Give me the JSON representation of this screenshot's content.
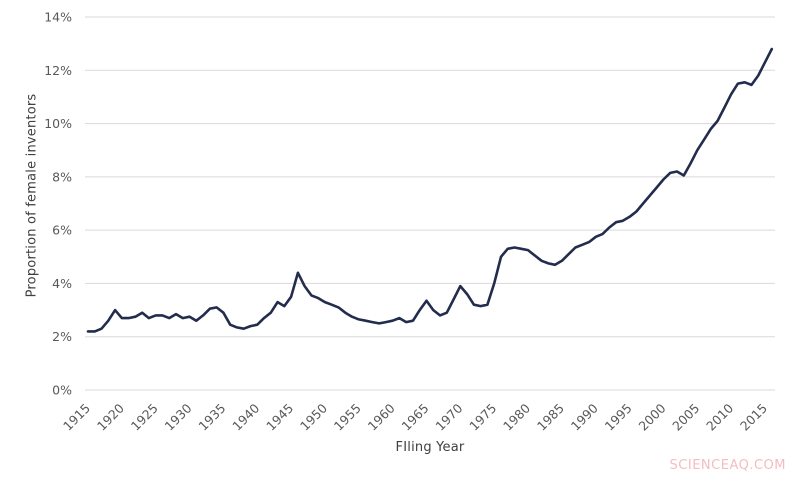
{
  "page": {
    "background": "#ffffff"
  },
  "watermark": {
    "text": "SCIENCEAQ.COM",
    "color": "#f4bcc1"
  },
  "chart_data": {
    "type": "line",
    "title": "",
    "xlabel": "FIling Year",
    "ylabel": "Proportion of female inventors",
    "ylim": [
      0,
      14
    ],
    "xlim": [
      1915,
      2016
    ],
    "y_ticks": [
      0,
      2,
      4,
      6,
      8,
      10,
      12,
      14
    ],
    "y_tick_suffix": "%",
    "x_ticks": [
      1915,
      1920,
      1925,
      1930,
      1935,
      1940,
      1945,
      1950,
      1955,
      1960,
      1965,
      1970,
      1975,
      1980,
      1985,
      1990,
      1995,
      2000,
      2005,
      2010,
      2015
    ],
    "grid": "horizontal",
    "legend": "none",
    "colors": {
      "line": "#232c4d",
      "gridline": "#d9d9d9",
      "tick_label": "#595959",
      "axis_title": "#404040"
    },
    "series": [
      {
        "name": "Proportion of female inventors",
        "x": [
          1915,
          1916,
          1917,
          1918,
          1919,
          1920,
          1921,
          1922,
          1923,
          1924,
          1925,
          1926,
          1927,
          1928,
          1929,
          1930,
          1931,
          1932,
          1933,
          1934,
          1935,
          1936,
          1937,
          1938,
          1939,
          1940,
          1941,
          1942,
          1943,
          1944,
          1945,
          1946,
          1947,
          1948,
          1949,
          1950,
          1951,
          1952,
          1953,
          1954,
          1955,
          1956,
          1957,
          1958,
          1959,
          1960,
          1961,
          1962,
          1963,
          1964,
          1965,
          1966,
          1967,
          1968,
          1969,
          1970,
          1971,
          1972,
          1973,
          1974,
          1975,
          1976,
          1977,
          1978,
          1979,
          1980,
          1981,
          1982,
          1983,
          1984,
          1985,
          1986,
          1987,
          1988,
          1989,
          1990,
          1991,
          1992,
          1993,
          1994,
          1995,
          1996,
          1997,
          1998,
          1999,
          2000,
          2001,
          2002,
          2003,
          2004,
          2005,
          2006,
          2007,
          2008,
          2009,
          2010,
          2011,
          2012,
          2013,
          2014,
          2015,
          2016
        ],
        "values": [
          2.2,
          2.2,
          2.3,
          2.6,
          3.0,
          2.7,
          2.7,
          2.75,
          2.9,
          2.7,
          2.8,
          2.8,
          2.7,
          2.85,
          2.7,
          2.75,
          2.6,
          2.8,
          3.05,
          3.1,
          2.9,
          2.45,
          2.35,
          2.3,
          2.4,
          2.45,
          2.7,
          2.9,
          3.3,
          3.15,
          3.5,
          4.4,
          3.9,
          3.55,
          3.45,
          3.3,
          3.2,
          3.1,
          2.9,
          2.75,
          2.65,
          2.6,
          2.55,
          2.5,
          2.55,
          2.6,
          2.7,
          2.55,
          2.6,
          3.0,
          3.35,
          3.0,
          2.8,
          2.9,
          3.4,
          3.9,
          3.6,
          3.2,
          3.15,
          3.2,
          4.0,
          5.0,
          5.3,
          5.35,
          5.3,
          5.25,
          5.05,
          4.85,
          4.75,
          4.7,
          4.85,
          5.1,
          5.35,
          5.45,
          5.55,
          5.75,
          5.85,
          6.1,
          6.3,
          6.35,
          6.5,
          6.7,
          7.0,
          7.3,
          7.6,
          7.9,
          8.15,
          8.2,
          8.05,
          8.5,
          9.0,
          9.4,
          9.8,
          10.1,
          10.6,
          11.1,
          11.5,
          11.55,
          11.45,
          11.8,
          12.3,
          12.8
        ]
      }
    ]
  }
}
